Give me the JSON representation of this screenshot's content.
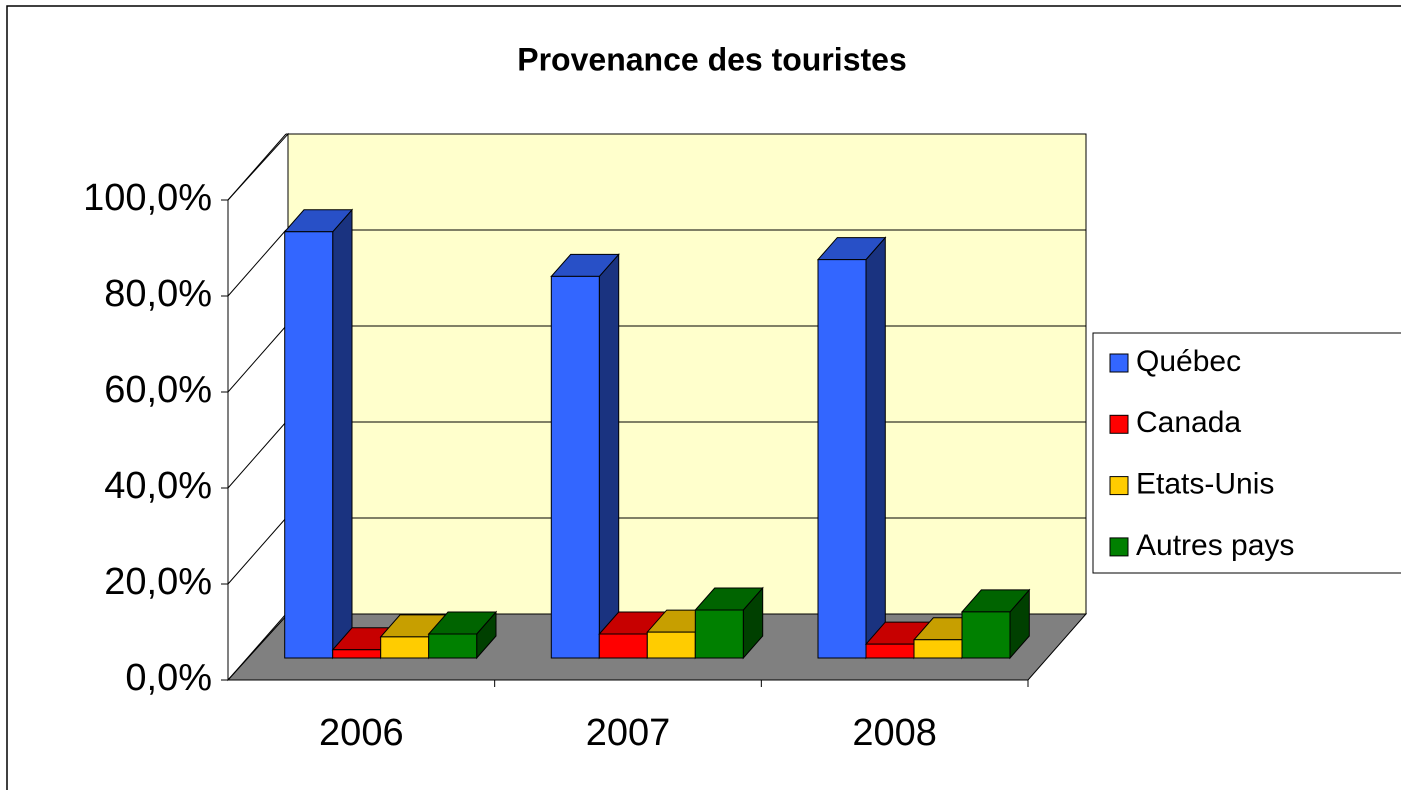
{
  "chart_data": {
    "type": "bar3d",
    "title": "Provenance des touristes",
    "categories": [
      "2006",
      "2007",
      "2008"
    ],
    "series": [
      {
        "name": "Québec",
        "color": "#3366ff",
        "values": [
          88.8,
          79.5,
          83
        ]
      },
      {
        "name": "Canada",
        "color": "#ff0000",
        "values": [
          1.7,
          5,
          2.9
        ]
      },
      {
        "name": "Etats-Unis",
        "color": "#ffcc00",
        "values": [
          4.4,
          5.4,
          3.8
        ]
      },
      {
        "name": "Autres pays",
        "color": "#008000",
        "values": [
          5,
          10,
          9.6
        ]
      }
    ],
    "ylim": [
      0,
      100
    ],
    "yticks": [
      {
        "value": 0,
        "label": "0,0%"
      },
      {
        "value": 20,
        "label": "20,0%"
      },
      {
        "value": 40,
        "label": "40,0%"
      },
      {
        "value": 60,
        "label": "60,0%"
      },
      {
        "value": 80,
        "label": "80,0%"
      },
      {
        "value": 100,
        "label": "100,0%"
      }
    ],
    "grid": true,
    "legend": "right"
  }
}
